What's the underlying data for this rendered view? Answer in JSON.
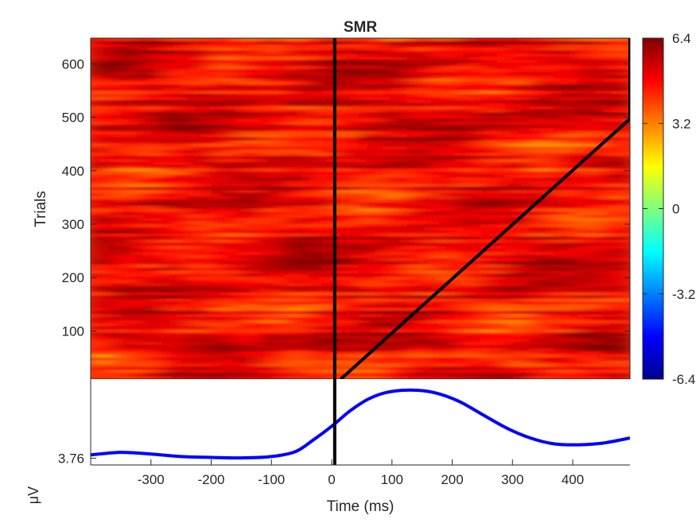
{
  "chart_data": [
    {
      "type": "heatmap",
      "title": "SMR",
      "ylabel": "Trials",
      "xlim": [
        -400,
        495
      ],
      "ylim": [
        10,
        648
      ],
      "yticks": [
        100,
        200,
        300,
        400,
        500,
        600
      ],
      "colorbar": {
        "ticks": [
          "6.4",
          "3.2",
          "0",
          "-3.2",
          "-6.4"
        ],
        "tick_values": [
          6.4,
          3.2,
          0,
          -3.2,
          -6.4
        ],
        "clim": [
          -6.4,
          6.4
        ],
        "colormap": "jet"
      },
      "overlay_lines": [
        {
          "x": [
            5,
            5
          ],
          "y": [
            10,
            648
          ]
        },
        {
          "x": [
            15,
            495,
            495
          ],
          "y": [
            10,
            497,
            648
          ]
        }
      ],
      "line_color": "#000000"
    },
    {
      "type": "line",
      "xlabel": "Time (ms)",
      "ylabel": "μV",
      "xlim": [
        -400,
        495
      ],
      "xticks": [
        -300,
        -200,
        -100,
        0,
        100,
        200,
        300,
        400
      ],
      "ytick_labels": [
        "3.76"
      ],
      "series": [
        {
          "color": "#0000ff",
          "x": [
            -400,
            -350,
            -300,
            -250,
            -200,
            -150,
            -100,
            -60,
            -30,
            0,
            30,
            60,
            90,
            130,
            170,
            210,
            250,
            290,
            330,
            370,
            410,
            450,
            495
          ],
          "y": [
            3.78,
            3.795,
            3.785,
            3.77,
            3.765,
            3.762,
            3.77,
            3.8,
            3.87,
            3.95,
            4.04,
            4.11,
            4.15,
            4.165,
            4.15,
            4.1,
            4.02,
            3.94,
            3.88,
            3.845,
            3.84,
            3.85,
            3.88
          ]
        }
      ],
      "marker_line_x": 5,
      "ylim": [
        3.72,
        4.23
      ]
    }
  ]
}
